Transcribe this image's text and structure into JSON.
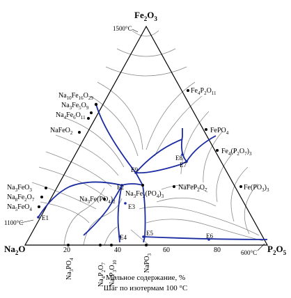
{
  "vertices": {
    "top": {
      "main": "Fe",
      "sub1": "2",
      "mid": "O",
      "sub2": "3"
    },
    "left": {
      "main": "Na",
      "sub1": "2",
      "mid": "O",
      "sub2": ""
    },
    "right": {
      "main": "P",
      "sub1": "2",
      "mid": "O",
      "sub2": "5"
    }
  },
  "temperatures": {
    "t1500": "1500°C",
    "t1100": "1100°C",
    "t600": "600°C"
  },
  "ticks": [
    "20",
    "40",
    "60",
    "80"
  ],
  "left_compounds": [
    {
      "id": "na10",
      "parts": [
        [
          "Na",
          ""
        ],
        [
          "10",
          "s"
        ],
        [
          "Fe",
          ""
        ],
        [
          "16",
          "s"
        ],
        [
          "O",
          ""
        ],
        [
          "29",
          "s"
        ]
      ]
    },
    {
      "id": "na3fe5",
      "parts": [
        [
          "Na",
          ""
        ],
        [
          "3",
          "s"
        ],
        [
          "Fe",
          ""
        ],
        [
          "5",
          "s"
        ],
        [
          "O",
          ""
        ],
        [
          "9",
          "s"
        ]
      ]
    },
    {
      "id": "na4fe6",
      "parts": [
        [
          "Na",
          ""
        ],
        [
          "4",
          "s"
        ],
        [
          "Fe",
          ""
        ],
        [
          "6",
          "s"
        ],
        [
          "O",
          ""
        ],
        [
          "11",
          "s"
        ]
      ]
    },
    {
      "id": "nafeo2",
      "parts": [
        [
          "NaFeO",
          ""
        ],
        [
          "2",
          "s"
        ]
      ]
    },
    {
      "id": "na3feo3",
      "parts": [
        [
          "Na",
          ""
        ],
        [
          "3",
          "s"
        ],
        [
          "FeO",
          ""
        ],
        [
          "3",
          "s"
        ]
      ]
    },
    {
      "id": "na8fe2o7",
      "parts": [
        [
          "Na",
          ""
        ],
        [
          "8",
          "s"
        ],
        [
          "Fe",
          ""
        ],
        [
          "2",
          "s"
        ],
        [
          "O",
          ""
        ],
        [
          "7",
          "s"
        ]
      ]
    },
    {
      "id": "na5feo4",
      "parts": [
        [
          "Na",
          ""
        ],
        [
          "5",
          "s"
        ],
        [
          "FeO",
          ""
        ],
        [
          "4",
          "s"
        ]
      ]
    }
  ],
  "right_compounds": [
    {
      "id": "fe4p2o11",
      "parts": [
        [
          "Fe",
          ""
        ],
        [
          "4",
          "s"
        ],
        [
          "P",
          ""
        ],
        [
          "2",
          "s"
        ],
        [
          "O",
          ""
        ],
        [
          "11",
          "s"
        ]
      ]
    },
    {
      "id": "fepo4",
      "parts": [
        [
          "FePO",
          ""
        ],
        [
          "4",
          "s"
        ]
      ]
    },
    {
      "id": "fe4p2o7",
      "parts": [
        [
          "Fe",
          ""
        ],
        [
          "4",
          "s"
        ],
        [
          "(P",
          ""
        ],
        [
          "2",
          "s"
        ],
        [
          "O",
          ""
        ],
        [
          "7",
          "s"
        ],
        [
          ")",
          ""
        ],
        [
          "3",
          "s"
        ]
      ]
    },
    {
      "id": "fepo33",
      "parts": [
        [
          "Fe(PO",
          ""
        ],
        [
          "3",
          "s"
        ],
        [
          ")",
          ""
        ],
        [
          "3",
          "s"
        ]
      ]
    }
  ],
  "inner_compounds": [
    {
      "id": "na3fepo42",
      "parts": [
        [
          "Na",
          ""
        ],
        [
          "3",
          "s"
        ],
        [
          "Fe(PO",
          ""
        ],
        [
          "4",
          "s"
        ],
        [
          ")",
          ""
        ],
        [
          "2",
          "s"
        ]
      ]
    },
    {
      "id": "na3fe2po43",
      "parts": [
        [
          "Na",
          ""
        ],
        [
          "3",
          "s"
        ],
        [
          "Fe",
          ""
        ],
        [
          "2",
          "s"
        ],
        [
          "(PO",
          ""
        ],
        [
          "4",
          "s"
        ],
        [
          ")",
          ""
        ],
        [
          "3",
          "s"
        ]
      ]
    },
    {
      "id": "nafep2o7",
      "parts": [
        [
          "NaFeP",
          ""
        ],
        [
          "2",
          "s"
        ],
        [
          "O",
          ""
        ],
        [
          "7",
          "s"
        ]
      ]
    }
  ],
  "bottom_compounds": [
    {
      "id": "na3po4",
      "parts": [
        [
          "Na",
          ""
        ],
        [
          "3",
          "s"
        ],
        [
          "PO",
          ""
        ],
        [
          "4",
          "s"
        ]
      ]
    },
    {
      "id": "na4p2o7",
      "parts": [
        [
          "Na",
          ""
        ],
        [
          "4",
          "s"
        ],
        [
          "P",
          ""
        ],
        [
          "2",
          "s"
        ],
        [
          "O",
          ""
        ],
        [
          "7",
          "s"
        ]
      ]
    },
    {
      "id": "na5p3o10",
      "parts": [
        [
          "Na",
          ""
        ],
        [
          "5",
          "s"
        ],
        [
          "P",
          ""
        ],
        [
          "3",
          "s"
        ],
        [
          "O",
          ""
        ],
        [
          "10",
          "s"
        ]
      ]
    },
    {
      "id": "napo3",
      "parts": [
        [
          "NaPO",
          ""
        ],
        [
          "3",
          "s"
        ]
      ]
    }
  ],
  "eutectics": [
    "E1",
    "E2",
    "E3",
    "E4",
    "E5",
    "E6",
    "E7",
    "E8",
    "E9"
  ],
  "footer": {
    "line1": "Мольное содержание, %",
    "line2": "Шаг по изотермам 100 °C"
  }
}
